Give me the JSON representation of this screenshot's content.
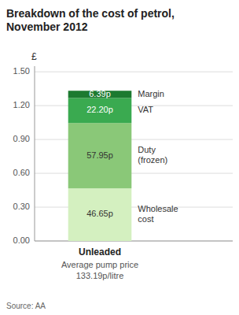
{
  "chart_data": {
    "type": "bar",
    "stacked": true,
    "data_labels": true,
    "grid": true,
    "title": "Breakdown of the cost of petrol,\nNovember 2012",
    "ylabel": "£",
    "categories": [
      "Unleaded"
    ],
    "annotations": [
      "Average pump price",
      "133.19p/litre"
    ],
    "source": "Source: AA",
    "series": [
      {
        "name": "Wholesale\ncost",
        "color": "#d4f0c0",
        "values": [
          0.4665
        ],
        "value_labels": [
          "46.65p"
        ]
      },
      {
        "name": "Duty\n(frozen)",
        "color": "#8ac878",
        "values": [
          0.5795
        ],
        "value_labels": [
          "57.95p"
        ]
      },
      {
        "name": "VAT",
        "color": "#3aaa50",
        "values": [
          0.222
        ],
        "value_labels": [
          "22.20p"
        ]
      },
      {
        "name": "Margin",
        "color": "#1c7a30",
        "values": [
          0.0639
        ],
        "value_labels": [
          "6.39p"
        ]
      }
    ],
    "ylim": [
      0,
      1.55
    ],
    "yticks": [
      {
        "value": 0.0,
        "label": "0.00"
      },
      {
        "value": 0.3,
        "label": "0.30"
      },
      {
        "value": 0.6,
        "label": "0.60"
      },
      {
        "value": 0.9,
        "label": "0.90"
      },
      {
        "value": 1.2,
        "label": "1.20"
      },
      {
        "value": 1.5,
        "label": "1.50"
      }
    ]
  }
}
